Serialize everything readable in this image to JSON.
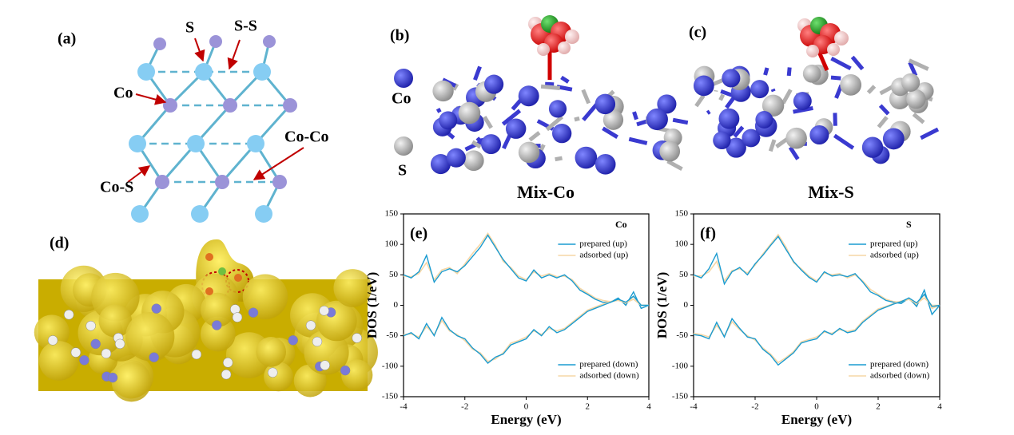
{
  "panels": {
    "a": {
      "label": "(a)",
      "annotations": [
        "S",
        "S-S",
        "Co",
        "Co-Co",
        "Co-S"
      ]
    },
    "b": {
      "label": "(b)",
      "legend": [
        "Co",
        "S"
      ],
      "caption": "Mix-Co"
    },
    "c": {
      "label": "(c)",
      "caption": "Mix-S"
    },
    "d": {
      "label": "(d)"
    }
  },
  "chart_data": [
    {
      "type": "line",
      "panel_label": "(e)",
      "title": "Co",
      "x_label": "Energy (eV)",
      "y_label": "DOS (1/eV)",
      "x": [
        -4,
        -3.75,
        -3.5,
        -3.25,
        -3,
        -2.75,
        -2.5,
        -2.25,
        -2,
        -1.75,
        -1.5,
        -1.25,
        -1,
        -0.75,
        -0.5,
        -0.25,
        0,
        0.25,
        0.5,
        0.75,
        1,
        1.25,
        1.5,
        1.75,
        2,
        2.25,
        2.5,
        2.75,
        3,
        3.25,
        3.5,
        3.75,
        4
      ],
      "xlim": [
        -4,
        4
      ],
      "ylim": [
        -150,
        150
      ],
      "xticks": [
        -4,
        -2,
        0,
        2,
        4
      ],
      "yticks": [
        -150,
        -100,
        -50,
        0,
        50,
        100,
        150
      ],
      "series": [
        {
          "name": "prepared (up)",
          "color": "#1a9bd0",
          "values": [
            50,
            45,
            55,
            82,
            38,
            55,
            60,
            55,
            65,
            80,
            95,
            115,
            95,
            75,
            60,
            45,
            40,
            58,
            45,
            50,
            45,
            50,
            40,
            25,
            18,
            10,
            5,
            5,
            12,
            0,
            22,
            -5,
            0
          ]
        },
        {
          "name": "adsorbed (up)",
          "color": "#f6d7a6",
          "values": [
            48,
            47,
            52,
            70,
            42,
            58,
            62,
            52,
            68,
            85,
            100,
            118,
            98,
            72,
            62,
            48,
            42,
            55,
            48,
            52,
            47,
            48,
            42,
            28,
            20,
            12,
            8,
            6,
            10,
            2,
            15,
            0,
            0
          ]
        },
        {
          "name": "prepared (down)",
          "color": "#1a9bd0",
          "values": [
            -50,
            -45,
            -55,
            -30,
            -50,
            -20,
            -40,
            -50,
            -55,
            -70,
            -80,
            -95,
            -85,
            -80,
            -65,
            -60,
            -55,
            -40,
            -50,
            -35,
            -45,
            -40,
            -30,
            -20,
            -10,
            -5,
            0,
            5,
            10,
            5,
            15,
            0,
            0
          ]
        },
        {
          "name": "adsorbed (down)",
          "color": "#f6d7a6",
          "values": [
            -48,
            -47,
            -52,
            -35,
            -48,
            -25,
            -42,
            -48,
            -58,
            -72,
            -78,
            -92,
            -88,
            -78,
            -62,
            -58,
            -52,
            -42,
            -48,
            -38,
            -42,
            -38,
            -28,
            -18,
            -8,
            -3,
            2,
            6,
            8,
            4,
            10,
            0,
            0
          ]
        }
      ]
    },
    {
      "type": "line",
      "panel_label": "(f)",
      "title": "S",
      "x_label": "Energy (eV)",
      "y_label": "DOS (1/eV)",
      "x": [
        -4,
        -3.75,
        -3.5,
        -3.25,
        -3,
        -2.75,
        -2.5,
        -2.25,
        -2,
        -1.75,
        -1.5,
        -1.25,
        -1,
        -0.75,
        -0.5,
        -0.25,
        0,
        0.25,
        0.5,
        0.75,
        1,
        1.25,
        1.5,
        1.75,
        2,
        2.25,
        2.5,
        2.75,
        3,
        3.25,
        3.5,
        3.75,
        4
      ],
      "xlim": [
        -4,
        4
      ],
      "ylim": [
        -150,
        150
      ],
      "xticks": [
        -4,
        -2,
        0,
        2,
        4
      ],
      "yticks": [
        -150,
        -100,
        -50,
        0,
        50,
        100,
        150
      ],
      "series": [
        {
          "name": "prepared (up)",
          "color": "#1a9bd0",
          "values": [
            50,
            45,
            60,
            85,
            35,
            55,
            62,
            50,
            68,
            82,
            98,
            113,
            92,
            72,
            58,
            46,
            38,
            55,
            48,
            50,
            47,
            52,
            38,
            22,
            16,
            8,
            5,
            3,
            12,
            -2,
            25,
            -15,
            0
          ]
        },
        {
          "name": "adsorbed (up)",
          "color": "#f6d7a6",
          "values": [
            48,
            48,
            55,
            72,
            40,
            57,
            60,
            53,
            66,
            84,
            100,
            116,
            96,
            70,
            60,
            48,
            40,
            53,
            50,
            52,
            45,
            50,
            40,
            26,
            18,
            10,
            6,
            5,
            10,
            0,
            18,
            -5,
            0
          ]
        },
        {
          "name": "prepared (down)",
          "color": "#1a9bd0",
          "values": [
            -48,
            -50,
            -55,
            -28,
            -52,
            -22,
            -38,
            -52,
            -55,
            -72,
            -82,
            -98,
            -88,
            -78,
            -62,
            -58,
            -55,
            -42,
            -48,
            -38,
            -45,
            -42,
            -28,
            -18,
            -8,
            -3,
            2,
            6,
            12,
            4,
            18,
            -2,
            0
          ]
        },
        {
          "name": "adsorbed (down)",
          "color": "#f6d7a6",
          "values": [
            -46,
            -48,
            -52,
            -33,
            -50,
            -27,
            -40,
            -50,
            -57,
            -70,
            -80,
            -94,
            -86,
            -76,
            -60,
            -56,
            -52,
            -44,
            -46,
            -40,
            -43,
            -40,
            -26,
            -16,
            -6,
            -2,
            3,
            7,
            10,
            3,
            12,
            0,
            0
          ]
        }
      ]
    }
  ]
}
